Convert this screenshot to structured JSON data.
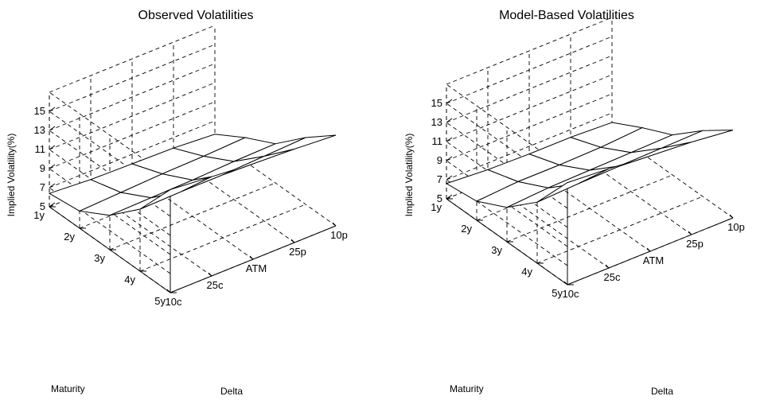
{
  "chart_data": [
    {
      "type": "surface",
      "title": "Observed Volatilities",
      "zlabel": "Implied Volatility(%)",
      "xlabel": "Delta",
      "ylabel": "Maturity",
      "x_categories": [
        "10c",
        "25c",
        "ATM",
        "25p",
        "10p"
      ],
      "y_categories": [
        "1y",
        "2y",
        "3y",
        "4y",
        "5y"
      ],
      "z_ticks": [
        5,
        7,
        9,
        11,
        13,
        15
      ],
      "zlim": [
        5,
        17
      ],
      "grid": true,
      "z_values": [
        [
          6.4,
          6.8,
          8.6,
          11.5,
          15.8
        ],
        [
          6.1,
          7.0,
          8.7,
          11.6,
          15.4
        ],
        [
          6.0,
          7.2,
          8.8,
          11.6,
          15.0
        ],
        [
          5.9,
          7.3,
          9.0,
          11.8,
          14.8
        ],
        [
          5.6,
          7.5,
          9.1,
          12.0,
          14.5
        ]
      ]
    },
    {
      "type": "surface",
      "title": "Model-Based Volatilities",
      "zlabel": "Implied Volatility(%)",
      "xlabel": "Delta",
      "ylabel": "Maturity",
      "x_categories": [
        "10c",
        "25c",
        "ATM",
        "25p",
        "10p"
      ],
      "y_categories": [
        "1y",
        "2y",
        "3y",
        "4y",
        "5y"
      ],
      "z_ticks": [
        5,
        7,
        9,
        11,
        13,
        15
      ],
      "zlim": [
        5,
        17
      ],
      "grid": true,
      "z_values": [
        [
          6.6,
          7.0,
          8.6,
          11.4,
          15.7
        ],
        [
          6.3,
          7.3,
          8.9,
          11.6,
          15.4
        ],
        [
          6.2,
          7.3,
          9.0,
          11.7,
          15.0
        ],
        [
          6.2,
          7.4,
          9.1,
          11.8,
          14.7
        ],
        [
          6.0,
          7.7,
          9.2,
          11.9,
          14.2
        ]
      ]
    }
  ]
}
